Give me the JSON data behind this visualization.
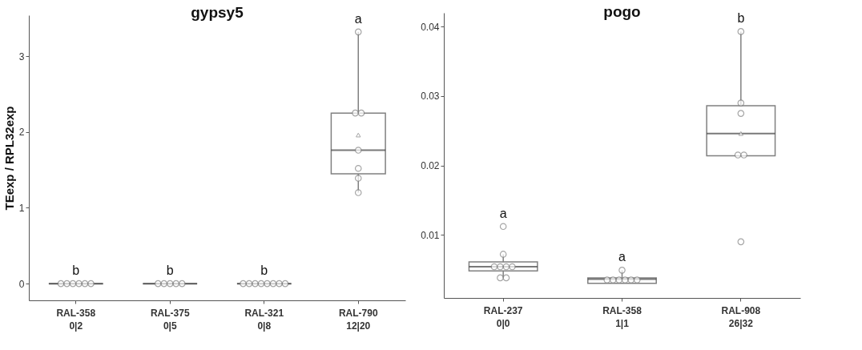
{
  "chart_data": [
    {
      "type": "box",
      "title": "gypsy5",
      "ylabel": "TEexp / RPL32exp",
      "categories": [
        "RAL-358\n0|2",
        "RAL-375\n0|5",
        "RAL-321\n0|8",
        "RAL-790\n12|20"
      ],
      "ylim": [
        -0.22,
        3.54
      ],
      "yticks": [
        0,
        1,
        2,
        3
      ],
      "grid": false,
      "marker": "circle",
      "series": [
        {
          "type": "box",
          "color": "#808080",
          "boxes": [
            {
              "low": 0,
              "q1": 0,
              "median": 0,
              "q3": 0,
              "high": 0
            },
            {
              "low": 0,
              "q1": 0,
              "median": 0,
              "q3": 0,
              "high": 0
            },
            {
              "low": 0,
              "q1": 0,
              "median": 0,
              "q3": 0,
              "high": 0
            },
            {
              "low": 1.2,
              "q1": 1.45,
              "median": 1.76,
              "q3": 2.25,
              "high": 3.32,
              "mean": 1.96
            }
          ]
        },
        {
          "type": "scatter",
          "color": "#808080",
          "x": [
            "RAL-358\n0|2",
            "RAL-358\n0|2",
            "RAL-358\n0|2",
            "RAL-358\n0|2",
            "RAL-358\n0|2",
            "RAL-358\n0|2",
            "RAL-375\n0|5",
            "RAL-375\n0|5",
            "RAL-375\n0|5",
            "RAL-375\n0|5",
            "RAL-375\n0|5",
            "RAL-321\n0|8",
            "RAL-321\n0|8",
            "RAL-321\n0|8",
            "RAL-321\n0|8",
            "RAL-321\n0|8",
            "RAL-321\n0|8",
            "RAL-321\n0|8",
            "RAL-321\n0|8",
            "RAL-790\n12|20",
            "RAL-790\n12|20",
            "RAL-790\n12|20",
            "RAL-790\n12|20",
            "RAL-790\n12|20",
            "RAL-790\n12|20",
            "RAL-790\n12|20"
          ],
          "values": [
            0,
            0,
            0,
            0,
            0,
            0,
            0,
            0,
            0,
            0,
            0,
            0,
            0,
            0,
            0,
            0,
            0,
            0,
            0,
            3.32,
            2.25,
            2.25,
            1.76,
            1.52,
            1.39,
            1.2
          ]
        }
      ],
      "annotations": [
        "b",
        "b",
        "b",
        "a"
      ]
    },
    {
      "type": "box",
      "title": "pogo",
      "categories": [
        "RAL-237\n0|0",
        "RAL-358\n1|1",
        "RAL-908\n26|32"
      ],
      "ylim": [
        0.0009,
        0.042
      ],
      "yticks": [
        0.01,
        0.02,
        0.03,
        0.04
      ],
      "grid": false,
      "marker": "circle",
      "series": [
        {
          "type": "box",
          "color": "#808080",
          "boxes": [
            {
              "low": 0.0038,
              "q1": 0.0048,
              "median": 0.0054,
              "q3": 0.0061,
              "high": 0.0072
            },
            {
              "low": 0.003,
              "q1": 0.003,
              "median": 0.0036,
              "q3": 0.0038,
              "high": 0.0049
            },
            {
              "low": 0.0214,
              "q1": 0.0214,
              "median": 0.0246,
              "q3": 0.0286,
              "high": 0.0393,
              "mean": 0.0246
            }
          ]
        },
        {
          "type": "scatter",
          "color": "#808080",
          "x": [
            "RAL-237\n0|0",
            "RAL-237\n0|0",
            "RAL-237\n0|0",
            "RAL-237\n0|0",
            "RAL-237\n0|0",
            "RAL-237\n0|0",
            "RAL-237\n0|0",
            "RAL-237\n0|0",
            "RAL-358\n1|1",
            "RAL-358\n1|1",
            "RAL-358\n1|1",
            "RAL-358\n1|1",
            "RAL-358\n1|1",
            "RAL-358\n1|1",
            "RAL-358\n1|1",
            "RAL-908\n26|32",
            "RAL-908\n26|32",
            "RAL-908\n26|32",
            "RAL-908\n26|32",
            "RAL-908\n26|32",
            "RAL-908\n26|32"
          ],
          "values": [
            0.0112,
            0.0072,
            0.0054,
            0.0054,
            0.0054,
            0.0054,
            0.0038,
            0.0038,
            0.0049,
            0.0035,
            0.0035,
            0.0035,
            0.0035,
            0.0035,
            0.0035,
            0.0393,
            0.029,
            0.0275,
            0.0215,
            0.0215,
            0.009
          ]
        }
      ],
      "annotations": [
        "a",
        "a",
        "b"
      ]
    }
  ]
}
